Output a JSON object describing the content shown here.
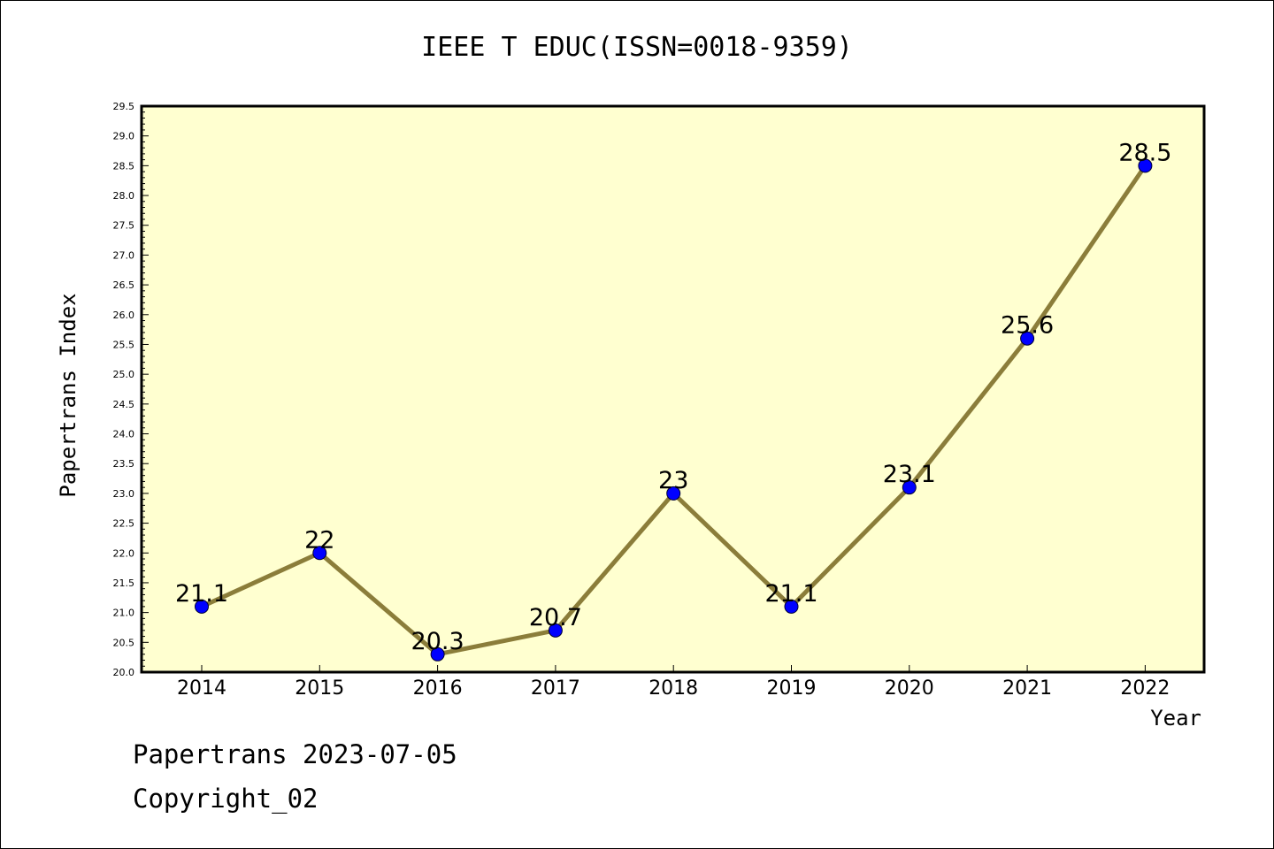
{
  "chart_data": {
    "type": "line",
    "title": "IEEE T EDUC(ISSN=0018-9359)",
    "xlabel": "Year",
    "ylabel": "Papertrans Index",
    "x": [
      "2014",
      "2015",
      "2016",
      "2017",
      "2018",
      "2019",
      "2020",
      "2021",
      "2022"
    ],
    "y": [
      21.1,
      22,
      20.3,
      20.7,
      23,
      21.1,
      23.1,
      25.6,
      28.5
    ],
    "data_labels": [
      "21.1",
      "22",
      "20.3",
      "20.7",
      "23",
      "21.1",
      "23.1",
      "25.6",
      "28.5"
    ],
    "ylim": [
      20.0,
      29.5
    ],
    "yticks": [
      "20.0",
      "20.5",
      "21.0",
      "21.5",
      "22.0",
      "22.5",
      "23.0",
      "23.5",
      "24.0",
      "24.5",
      "25.0",
      "25.5",
      "26.0",
      "26.5",
      "27.0",
      "27.5",
      "28.0",
      "28.5",
      "29.0",
      "29.5"
    ],
    "grid": false,
    "colors": {
      "plot_background": "#ffffd0",
      "line": "#8b7d3a",
      "marker": "#0000ff"
    }
  },
  "footer": {
    "line1": "Papertrans 2023-07-05",
    "line2": "Copyright_02"
  }
}
